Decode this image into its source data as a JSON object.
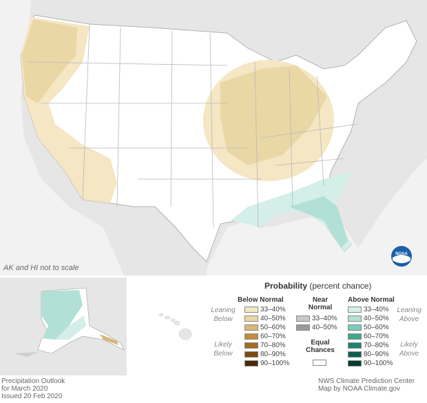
{
  "map": {
    "scale_note": "AK and HI not to scale"
  },
  "legend": {
    "title_bold": "Probability",
    "title_rest": "(percent chance)",
    "below": {
      "heading": "Below Normal",
      "leaning_label": "Leaning Below",
      "likely_label": "Likely Below",
      "items": [
        {
          "label": "33–40%",
          "color": "#f5e6c4"
        },
        {
          "label": "40–50%",
          "color": "#ead7a6"
        },
        {
          "label": "50–60%",
          "color": "#d9b878"
        },
        {
          "label": "60–70%",
          "color": "#c48b3a"
        },
        {
          "label": "70–80%",
          "color": "#a66b1e"
        },
        {
          "label": "80–90%",
          "color": "#7c4a10"
        },
        {
          "label": "90–100%",
          "color": "#4a2a06"
        }
      ]
    },
    "near": {
      "heading_line1": "Near",
      "heading_line2": "Normal",
      "items": [
        {
          "label": "33–40%",
          "color": "#c8c8c8"
        },
        {
          "label": "40–50%",
          "color": "#9a9a9a"
        }
      ]
    },
    "equal": {
      "line1": "Equal",
      "line2": "Chances",
      "color": "#ffffff"
    },
    "above": {
      "heading": "Above Normal",
      "leaning_label": "Leaning Above",
      "likely_label": "Likely Above",
      "items": [
        {
          "label": "33–40%",
          "color": "#d4eee8"
        },
        {
          "label": "40–50%",
          "color": "#b2e0d6"
        },
        {
          "label": "50–60%",
          "color": "#7ccbbb"
        },
        {
          "label": "60–70%",
          "color": "#3fa890"
        },
        {
          "label": "70–80%",
          "color": "#1f826d"
        },
        {
          "label": "80–90%",
          "color": "#0d5e4d"
        },
        {
          "label": "90–100%",
          "color": "#033d31"
        }
      ]
    }
  },
  "footer": {
    "left_line1": "Precipitation Outlook",
    "left_line2": "for March 2020",
    "left_line3": "Issued 20 Feb 2020",
    "right_line1": "NWS Climate Prediction Center",
    "right_line2": "Map by NOAA Climate.gov"
  },
  "logo": {
    "text": "NOAA"
  }
}
